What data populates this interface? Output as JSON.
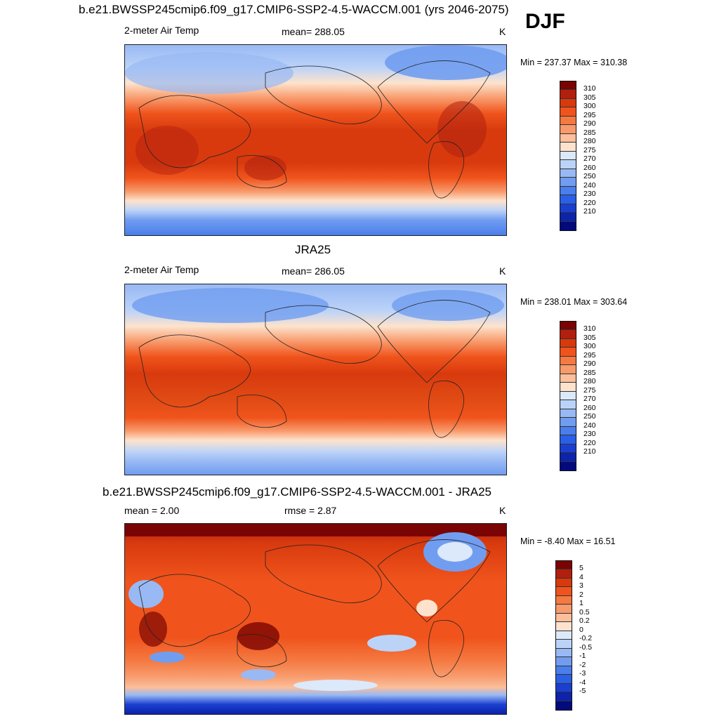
{
  "season": "DJF",
  "colors": {
    "temp_levels": [
      "#7a0403",
      "#b1200f",
      "#d83a0e",
      "#f0541c",
      "#f47a42",
      "#f89a6c",
      "#fbbf9b",
      "#fde3cd",
      "#dce9fb",
      "#bcd3f8",
      "#98b9f4",
      "#719df0",
      "#4a7eec",
      "#2a5fe6",
      "#1a3fd0",
      "#0c23aa",
      "#020a7c"
    ],
    "diff_levels": [
      "#7a0403",
      "#b1200f",
      "#d83a0e",
      "#f0541c",
      "#f47a42",
      "#f89a6c",
      "#fbbf9b",
      "#fde3cd",
      "#dce9fb",
      "#bcd3f8",
      "#98b9f4",
      "#719df0",
      "#4a7eec",
      "#2a5fe6",
      "#1a3fd0",
      "#0c23aa",
      "#020a7c"
    ]
  },
  "panels": [
    {
      "title": "b.e21.BWSSP245cmip6.f09_g17.CMIP6-SSP2-4.5-WACCM.001 (yrs 2046-2075)",
      "left_label": "2-meter Air Temp",
      "center_label": "mean= 288.05",
      "unit": "K",
      "minmax": "Min = 237.37 Max = 310.38",
      "colorbar_labels": [
        "310",
        "305",
        "300",
        "295",
        "290",
        "285",
        "280",
        "275",
        "270",
        "260",
        "250",
        "240",
        "230",
        "220",
        "210"
      ]
    },
    {
      "title": "JRA25",
      "left_label": "2-meter Air Temp",
      "center_label": "mean= 286.05",
      "unit": "K",
      "minmax": "Min = 238.01 Max = 303.64",
      "colorbar_labels": [
        "310",
        "305",
        "300",
        "295",
        "290",
        "285",
        "280",
        "275",
        "270",
        "260",
        "250",
        "240",
        "230",
        "220",
        "210"
      ]
    },
    {
      "title": "b.e21.BWSSP245cmip6.f09_g17.CMIP6-SSP2-4.5-WACCM.001 - JRA25",
      "left_label": "mean =   2.00",
      "center_label": "rmse =   2.87",
      "unit": "K",
      "minmax": "Min =  -8.40 Max =  16.51",
      "colorbar_labels": [
        "5",
        "4",
        "3",
        "2",
        "1",
        "0.5",
        "0.2",
        "0",
        "-0.2",
        "-0.5",
        "-1",
        "-2",
        "-3",
        "-4",
        "-5"
      ]
    }
  ]
}
